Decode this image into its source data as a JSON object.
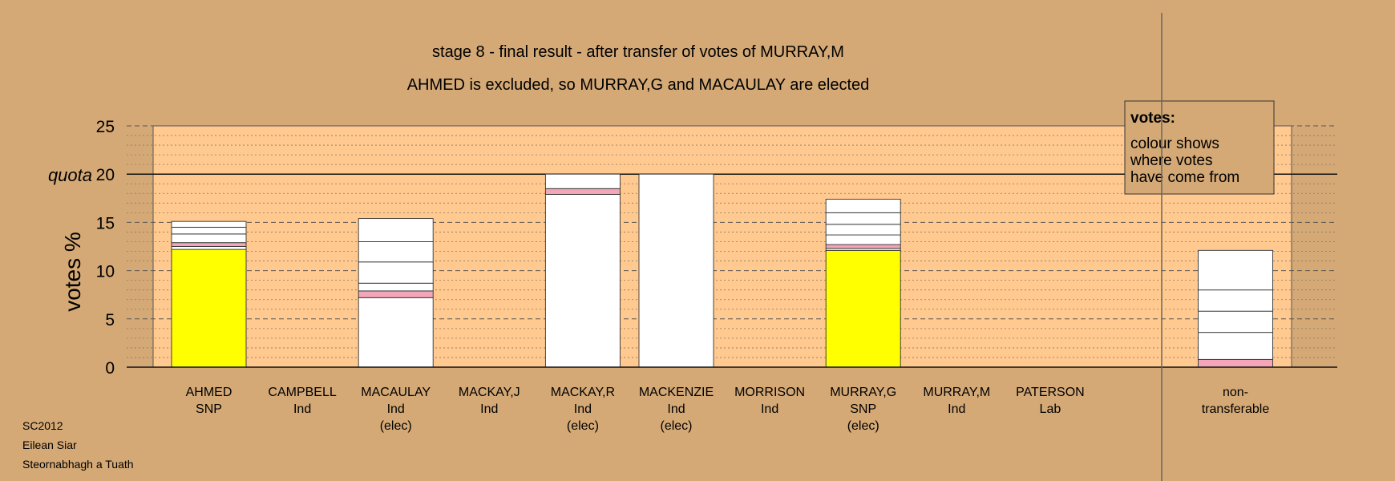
{
  "title": "stage 8 - final result - after transfer of votes of MURRAY,M",
  "subtitle": "AHMED is excluded, so MURRAY,G and MACAULAY are elected",
  "ylabel": "votes %",
  "quota_label": "quota",
  "legend": {
    "title": "votes:",
    "lines": [
      "colour shows",
      "where votes",
      "have come from"
    ]
  },
  "footer": [
    "SC2012",
    "Eilean Siar",
    "Steornabhagh a Tuath"
  ],
  "colors": {
    "background": "#D4A976",
    "plot": "#FFC98F",
    "snp": "#FFFF00",
    "lab": "#F4A6B8",
    "transfer": "#FFFFFF"
  },
  "chart_data": {
    "type": "bar",
    "stacked": true,
    "ylim": [
      0,
      25
    ],
    "yticks": [
      0,
      5,
      10,
      15,
      20,
      25
    ],
    "quota": 20,
    "grid": true,
    "legend_position": "top-right",
    "categories": [
      {
        "name": "AHMED",
        "party": "SNP",
        "status": ""
      },
      {
        "name": "CAMPBELL",
        "party": "Ind",
        "status": ""
      },
      {
        "name": "MACAULAY",
        "party": "Ind",
        "status": "(elec)"
      },
      {
        "name": "MACKAY,J",
        "party": "Ind",
        "status": ""
      },
      {
        "name": "MACKAY,R",
        "party": "Ind",
        "status": "(elec)"
      },
      {
        "name": "MACKENZIE",
        "party": "Ind",
        "status": "(elec)"
      },
      {
        "name": "MORRISON",
        "party": "Ind",
        "status": ""
      },
      {
        "name": "MURRAY,G",
        "party": "SNP",
        "status": "(elec)"
      },
      {
        "name": "MURRAY,M",
        "party": "Ind",
        "status": ""
      },
      {
        "name": "PATERSON",
        "party": "Lab",
        "status": ""
      },
      {
        "name": "non-",
        "party": "transferable",
        "status": ""
      }
    ],
    "segments": [
      [
        {
          "v": 12.2,
          "c": "snp"
        },
        {
          "v": 0.3,
          "c": "transfer"
        },
        {
          "v": 0.4,
          "c": "lab"
        },
        {
          "v": 0.9,
          "c": "transfer"
        },
        {
          "v": 0.7,
          "c": "transfer"
        },
        {
          "v": 0.6,
          "c": "transfer"
        }
      ],
      [],
      [
        {
          "v": 7.2,
          "c": "transfer"
        },
        {
          "v": 0.7,
          "c": "lab"
        },
        {
          "v": 0.8,
          "c": "transfer"
        },
        {
          "v": 2.2,
          "c": "transfer"
        },
        {
          "v": 2.1,
          "c": "transfer"
        },
        {
          "v": 2.4,
          "c": "transfer"
        }
      ],
      [],
      [
        {
          "v": 17.9,
          "c": "transfer"
        },
        {
          "v": 0.6,
          "c": "lab"
        },
        {
          "v": 1.5,
          "c": "transfer"
        }
      ],
      [
        {
          "v": 20.0,
          "c": "transfer"
        }
      ],
      [],
      [
        {
          "v": 12.1,
          "c": "snp"
        },
        {
          "v": 0.2,
          "c": "transfer"
        },
        {
          "v": 0.4,
          "c": "lab"
        },
        {
          "v": 1.0,
          "c": "transfer"
        },
        {
          "v": 1.1,
          "c": "transfer"
        },
        {
          "v": 1.2,
          "c": "transfer"
        },
        {
          "v": 1.4,
          "c": "transfer"
        }
      ],
      [],
      [],
      [
        {
          "v": 0.8,
          "c": "lab"
        },
        {
          "v": 2.8,
          "c": "transfer"
        },
        {
          "v": 2.2,
          "c": "transfer"
        },
        {
          "v": 2.2,
          "c": "transfer"
        },
        {
          "v": 4.1,
          "c": "transfer"
        }
      ]
    ]
  }
}
